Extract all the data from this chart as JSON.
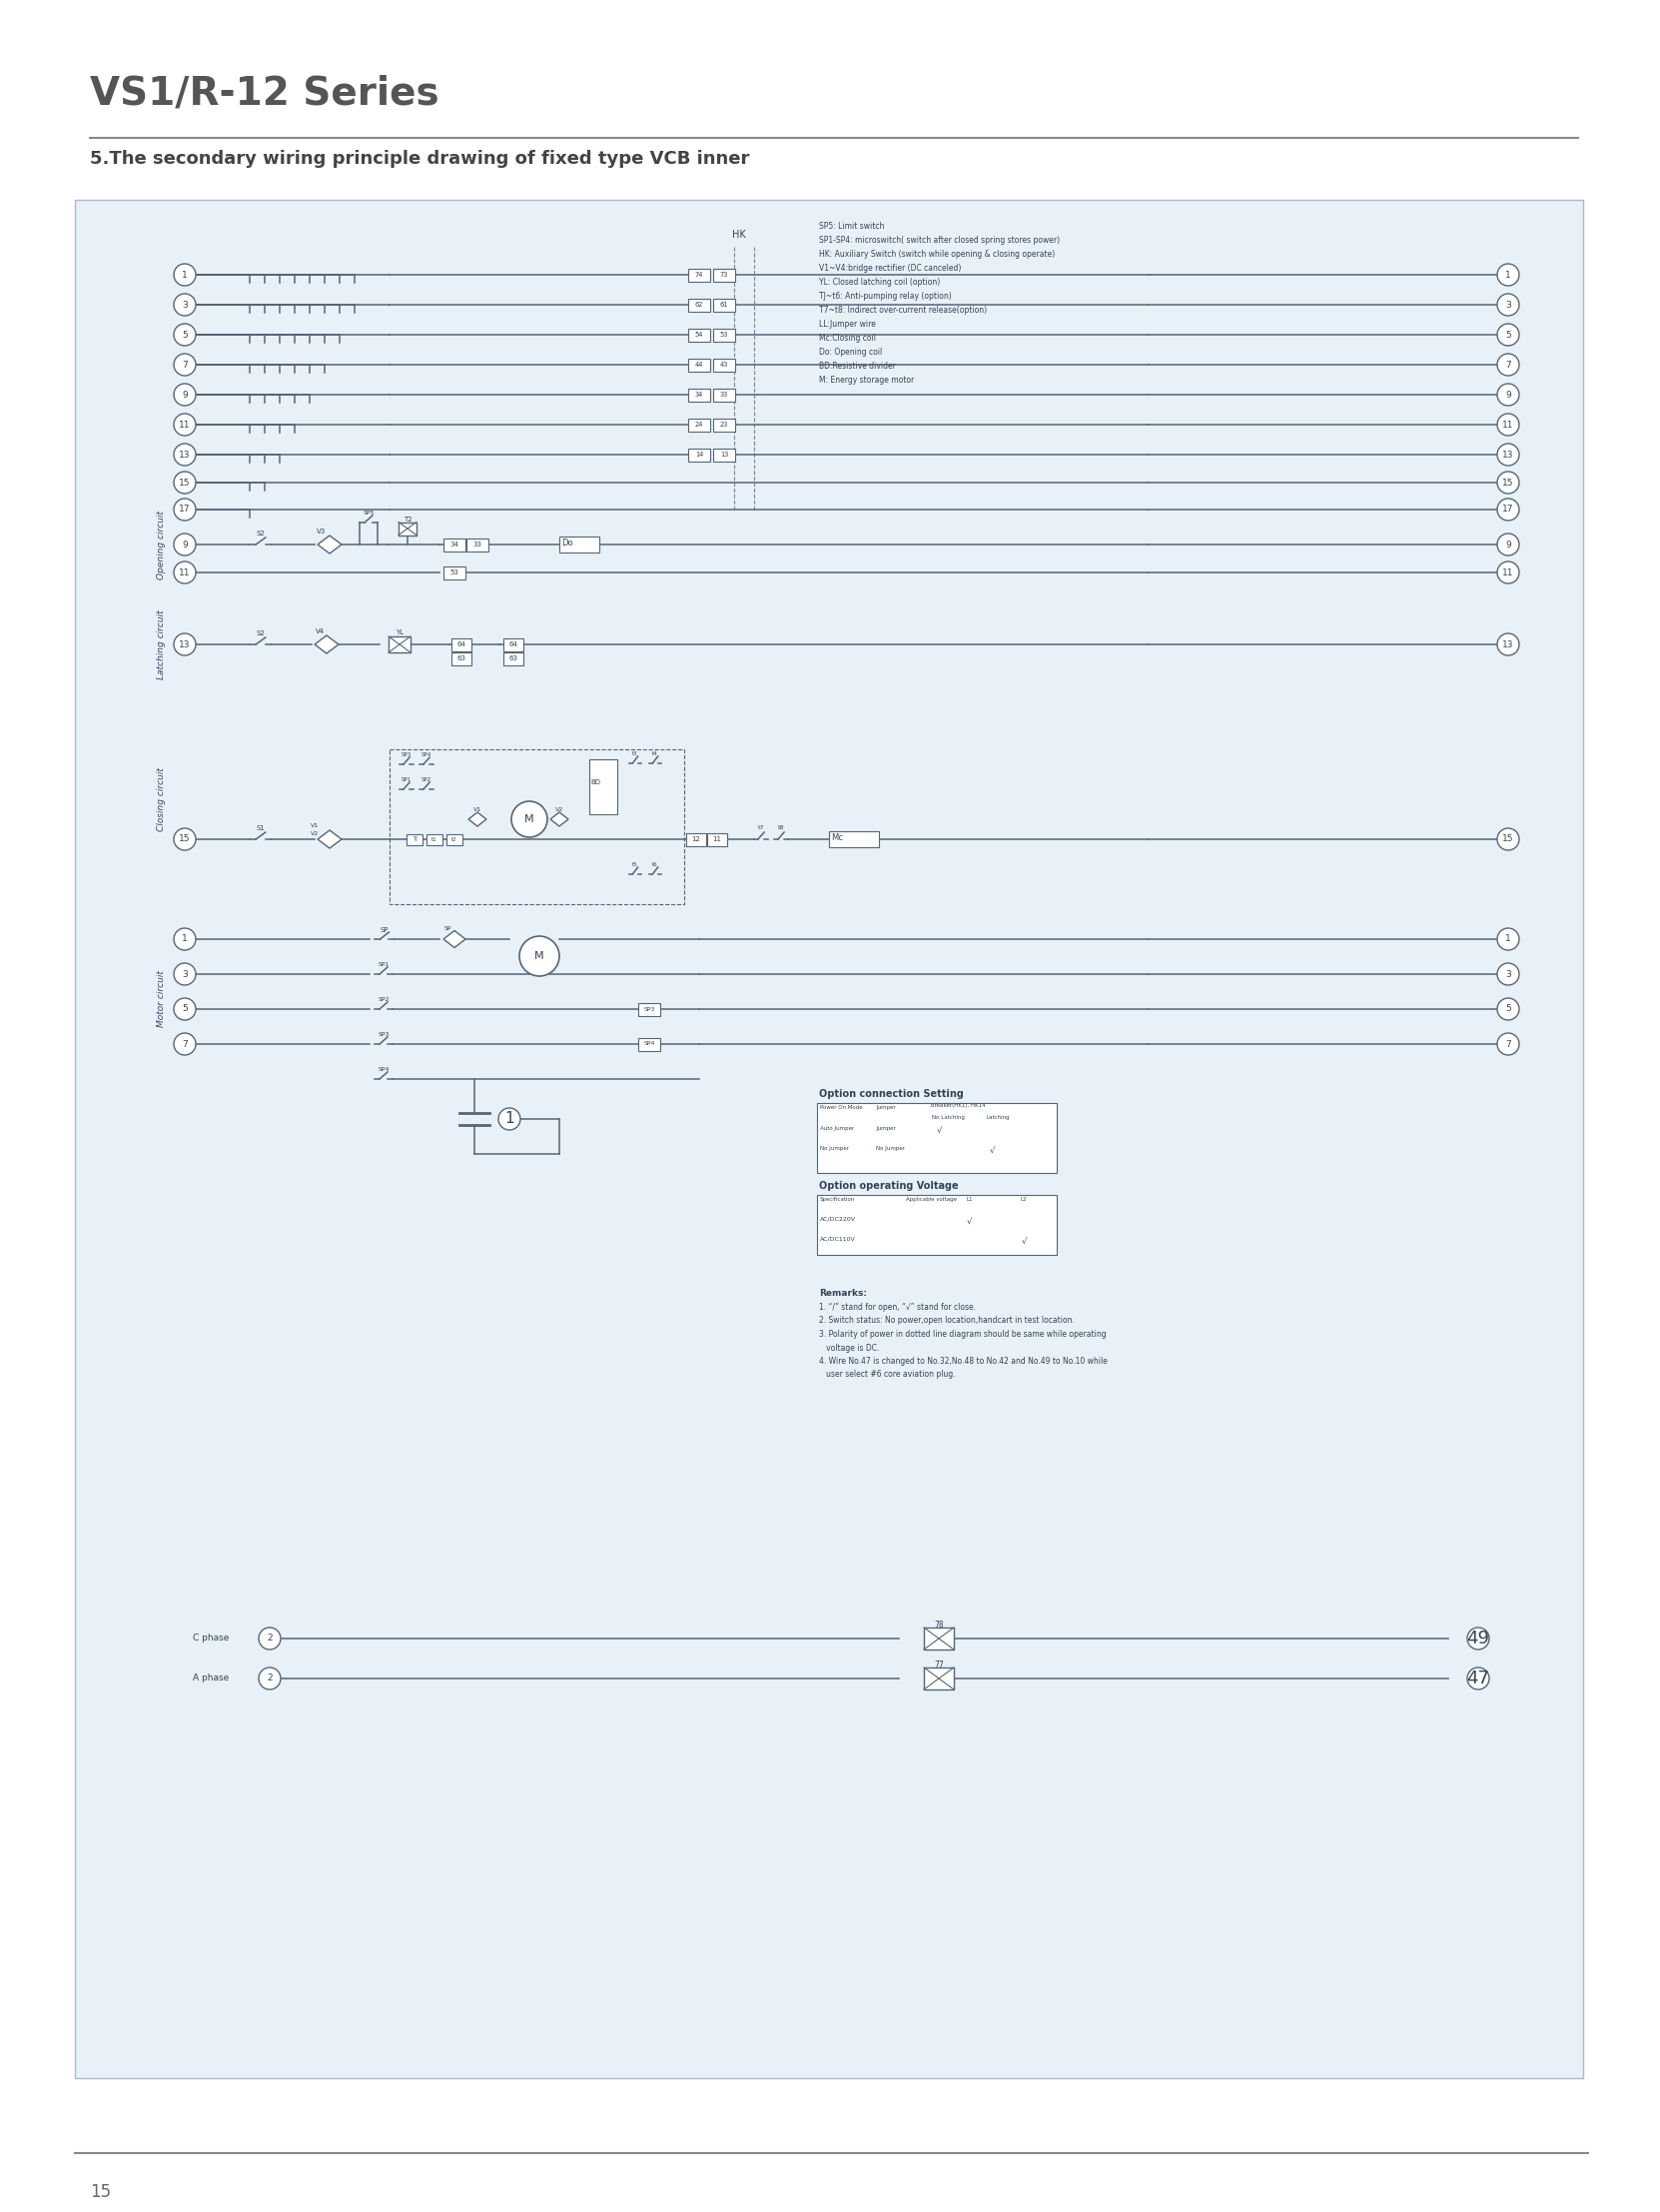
{
  "title": "VS1/R-12 Series",
  "subtitle": "5.The secondary wiring principle drawing of fixed type VCB inner",
  "page_number": "15",
  "bg_color": "#ddeeff",
  "outer_bg": "#ffffff",
  "text_color": "#555555",
  "line_color": "#555566",
  "diagram_bg": "#e8f0f8"
}
